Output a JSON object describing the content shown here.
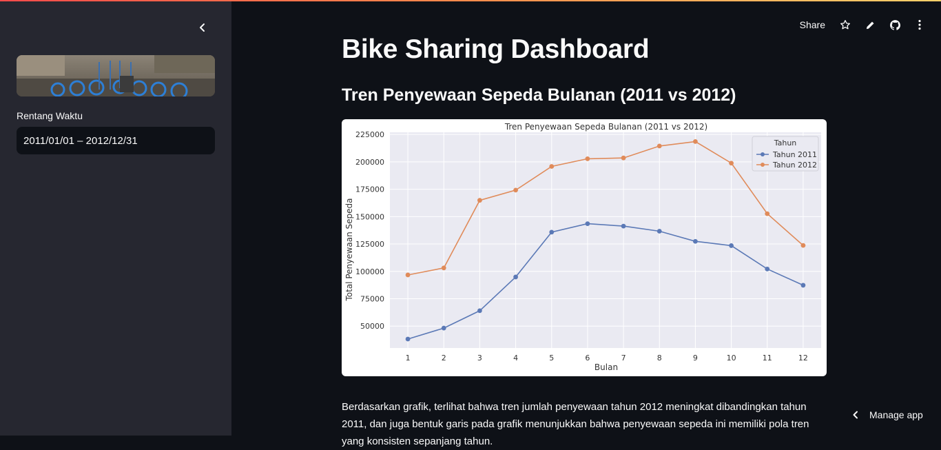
{
  "sidebar": {
    "date_range_label": "Rentang Waktu",
    "date_range_value": "2011/01/01 – 2012/12/31"
  },
  "toolbar": {
    "share_label": "Share"
  },
  "main": {
    "title": "Bike Sharing Dashboard",
    "subheader": "Tren Penyewaan Sepeda Bulanan (2011 vs 2012)",
    "description": "Berdasarkan grafik, terlihat bahwa tren jumlah penyewaan tahun 2012 meningkat dibandingkan tahun 2011, dan juga bentuk garis pada grafik menunjukkan bahwa penyewaan sepeda ini memiliki pola tren yang konsisten sepanjang tahun."
  },
  "footer": {
    "manage_app_label": "Manage app"
  },
  "colors": {
    "background": "#0e1117",
    "sidebar": "#262730",
    "series_2011": "#5b79b6",
    "series_2012": "#e08b5a"
  },
  "chart_data": {
    "type": "line",
    "title": "Tren Penyewaan Sepeda Bulanan (2011 vs 2012)",
    "xlabel": "Bulan",
    "ylabel": "Total Penyewaan Sepeda",
    "x": [
      1,
      2,
      3,
      4,
      5,
      6,
      7,
      8,
      9,
      10,
      11,
      12
    ],
    "yticks": [
      50000,
      75000,
      100000,
      125000,
      150000,
      175000,
      200000,
      225000
    ],
    "ylim": [
      30000,
      227000
    ],
    "legend_title": "Tahun",
    "legend_position": "top-right",
    "grid": true,
    "series": [
      {
        "name": "Tahun 2011",
        "color": "#5b79b6",
        "values": [
          38189,
          48215,
          64045,
          94870,
          135821,
          143512,
          141341,
          136691,
          127418,
          123511,
          102167,
          87323
        ]
      },
      {
        "name": "Tahun 2012",
        "color": "#e08b5a",
        "values": [
          96744,
          103137,
          164875,
          174224,
          195865,
          202830,
          203607,
          214503,
          218573,
          198841,
          152664,
          123713
        ]
      }
    ]
  }
}
